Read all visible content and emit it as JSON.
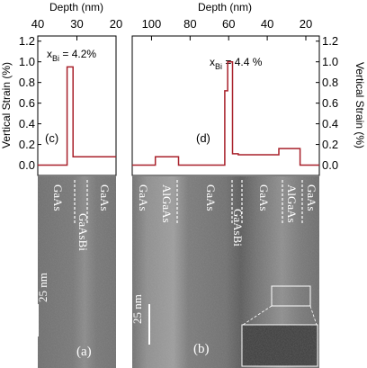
{
  "chart_data": [
    {
      "type": "line",
      "panel_label": "(c)",
      "xlabel": "Depth (nm)",
      "ylabel": "Vertical Strain (%)",
      "xlim": [
        40,
        20
      ],
      "ylim": [
        -0.1,
        1.25
      ],
      "x_ticks": [
        40,
        30,
        20
      ],
      "y_ticks": [
        0.0,
        0.2,
        0.4,
        0.6,
        0.8,
        1.0,
        1.2
      ],
      "annotation": "x",
      "annotation_sub": "Bi",
      "annotation_rest": " = 4.2%",
      "series": [
        {
          "x": [
            40,
            32.5,
            32.5,
            31.0,
            31.0,
            20
          ],
          "y": [
            0.0,
            0.0,
            0.95,
            0.95,
            0.08,
            0.08
          ]
        }
      ]
    },
    {
      "type": "line",
      "panel_label": "(d)",
      "xlabel": "Depth (nm)",
      "ylabel": "Vertical Strain (%)",
      "xlim": [
        110,
        13
      ],
      "ylim": [
        -0.1,
        1.25
      ],
      "x_ticks": [
        100,
        80,
        60,
        40,
        20
      ],
      "y_ticks": [
        0.0,
        0.2,
        0.4,
        0.6,
        0.8,
        1.0,
        1.2
      ],
      "annotation": "x",
      "annotation_sub": "Bi",
      "annotation_rest": " = 4.4 %",
      "series": [
        {
          "x": [
            110,
            98,
            98,
            86,
            86,
            62,
            62,
            60.5,
            60.5,
            58,
            58,
            55,
            55,
            34,
            34,
            23,
            23,
            13
          ],
          "y": [
            0.0,
            0.0,
            0.08,
            0.08,
            0.0,
            0.0,
            0.72,
            0.72,
            1.0,
            1.0,
            0.11,
            0.11,
            0.1,
            0.1,
            0.16,
            0.16,
            0.0,
            0.0
          ]
        }
      ]
    }
  ],
  "images": {
    "a": {
      "panel_label": "(a)",
      "scale_label": "25 nm",
      "layer_labels": [
        "GaAs",
        "GaAsBi",
        "GaAs"
      ]
    },
    "b": {
      "panel_label": "(b)",
      "scale_label": "25 nm",
      "layer_labels": [
        "GaAs",
        "AlGaAs",
        "GaAs",
        "GaAsBi",
        "GaAs",
        "AlGaAs",
        "GaAs"
      ]
    }
  },
  "colors": {
    "line": "#a8202a",
    "axis": "#000000",
    "tem_light": "#9a9a9a",
    "tem_dark": "#555555"
  }
}
